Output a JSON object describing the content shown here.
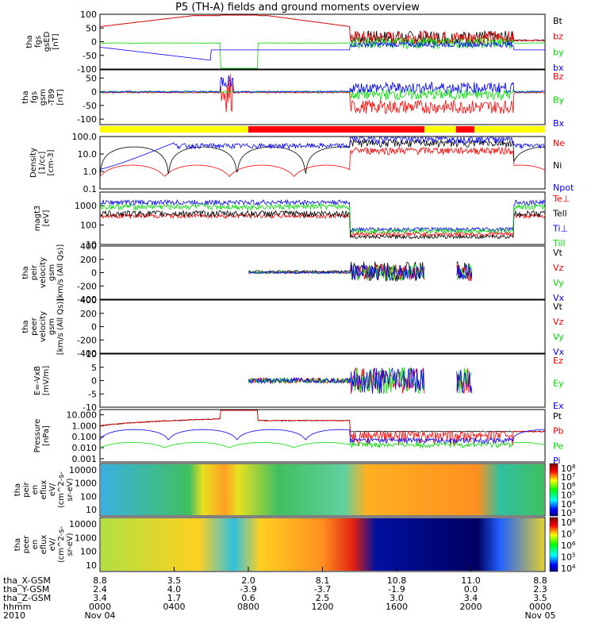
{
  "title": "P5 (TH-A) fields and ground moments overview",
  "colors": {
    "black": "#000000",
    "red": "#ff0000",
    "green": "#00dd00",
    "blue": "#0000ff",
    "yellow": "#ffff00"
  },
  "chart_data": [
    {
      "type": "line",
      "panel": "fgs-gsm",
      "ylabel": [
        "tha",
        "fgs",
        "gsED",
        "[nT]"
      ],
      "ylim": [
        -100,
        100
      ],
      "yticks": [
        "100",
        "50",
        "0",
        "-50",
        "-100"
      ],
      "yscale": "linear",
      "series": [
        {
          "name": "Bt",
          "color": "#000000"
        },
        {
          "name": "bz",
          "color": "#ff0000"
        },
        {
          "name": "by",
          "color": "#00dd00"
        },
        {
          "name": "bx",
          "color": "#0000ff"
        }
      ]
    },
    {
      "type": "line",
      "panel": "fgs-gsm-t89",
      "ylabel": [
        "tha",
        "fgs",
        "gsm",
        "-T89",
        "[nT]"
      ],
      "ylim": [
        -120,
        80
      ],
      "yticks": [
        "50",
        "0",
        "-50",
        "-100"
      ],
      "yscale": "linear",
      "series": [
        {
          "name": "Bz",
          "color": "#ff0000"
        },
        {
          "name": "By",
          "color": "#00dd00"
        },
        {
          "name": "Bx",
          "color": "#0000ff"
        }
      ]
    },
    {
      "type": "bar",
      "panel": "region-bar",
      "segments": [
        {
          "from": 0,
          "to": 8.0,
          "color": "#ffff00"
        },
        {
          "from": 8.0,
          "to": 17.5,
          "color": "#ff0000"
        },
        {
          "from": 17.5,
          "to": 19.2,
          "color": "#ffff00"
        },
        {
          "from": 19.2,
          "to": 20.2,
          "color": "#ff0000"
        },
        {
          "from": 20.2,
          "to": 24,
          "color": "#ffff00"
        }
      ]
    },
    {
      "type": "line",
      "panel": "density",
      "ylabel": [
        "Density",
        "[1/cc]",
        "[cm-3]"
      ],
      "ylim": [
        0.1,
        100
      ],
      "yticks": [
        "100.0",
        "10.0",
        "1.0",
        "0.1"
      ],
      "yscale": "log",
      "series": [
        {
          "name": "Ne",
          "color": "#ff0000"
        },
        {
          "name": "Ni",
          "color": "#000000"
        },
        {
          "name": "Npot",
          "color": "#0000ff"
        }
      ]
    },
    {
      "type": "line",
      "panel": "temperature",
      "ylabel": [
        "magt3",
        "[eV]"
      ],
      "ylim": [
        10,
        5000
      ],
      "yticks": [
        "1000",
        "100",
        "10"
      ],
      "yscale": "log",
      "series": [
        {
          "name": "Te⊥",
          "color": "#ff0000"
        },
        {
          "name": "Tell",
          "color": "#000000"
        },
        {
          "name": "Ti⊥",
          "color": "#0000ff"
        },
        {
          "name": "Till",
          "color": "#00dd00"
        }
      ]
    },
    {
      "type": "line",
      "panel": "peir-velocity",
      "ylabel": [
        "tha",
        "peir",
        "velocity",
        "gsm",
        "[km/s (All Qs)]"
      ],
      "ylim": [
        -400,
        400
      ],
      "yticks": [
        "400",
        "200",
        "0",
        "-200",
        "-400"
      ],
      "yscale": "linear",
      "series": [
        {
          "name": "Vt",
          "color": "#000000"
        },
        {
          "name": "Vz",
          "color": "#ff0000"
        },
        {
          "name": "Vy",
          "color": "#00dd00"
        },
        {
          "name": "Vx",
          "color": "#0000ff"
        }
      ]
    },
    {
      "type": "line",
      "panel": "peer-velocity",
      "ylabel": [
        "tha",
        "peer",
        "velocity",
        "gsm",
        "[km/s (All Qs)]"
      ],
      "ylim": [
        -400,
        400
      ],
      "yticks": [
        "400",
        "200",
        "0",
        "-200",
        "-400"
      ],
      "yscale": "linear",
      "series": [
        {
          "name": "Vt",
          "color": "#000000"
        },
        {
          "name": "Vz",
          "color": "#ff0000"
        },
        {
          "name": "Vy",
          "color": "#00dd00"
        },
        {
          "name": "Vx",
          "color": "#0000ff"
        }
      ]
    },
    {
      "type": "line",
      "panel": "efield",
      "ylabel": [
        "E=-VxB",
        "[mV/m]"
      ],
      "ylim": [
        -10,
        10
      ],
      "yticks": [
        "10",
        "5",
        "0",
        "-5",
        "-10"
      ],
      "yscale": "linear",
      "series": [
        {
          "name": "Ez",
          "color": "#ff0000"
        },
        {
          "name": "Ey",
          "color": "#00dd00"
        },
        {
          "name": "Ex",
          "color": "#0000ff"
        }
      ]
    },
    {
      "type": "line",
      "panel": "pressure",
      "ylabel": [
        "Pressure",
        "[nPa]"
      ],
      "ylim": [
        0.0005,
        30
      ],
      "yticks": [
        "10.000",
        "1.000",
        "0.100",
        "0.010",
        "0.001"
      ],
      "yscale": "log",
      "series": [
        {
          "name": "Pt",
          "color": "#000000"
        },
        {
          "name": "Pb",
          "color": "#ff0000"
        },
        {
          "name": "Pe",
          "color": "#00dd00"
        },
        {
          "name": "Pi",
          "color": "#0000ff"
        }
      ]
    },
    {
      "type": "heatmap",
      "panel": "peir-en-eflux",
      "ylabel": [
        "tha",
        "peir",
        "en",
        "eflux",
        "eV/",
        "(cm^2-s-",
        "sr-eV)"
      ],
      "yticks": [
        "10000",
        "1000",
        "100",
        "10"
      ],
      "colorbar": {
        "labels": [
          "10^8",
          "10^7",
          "10^6",
          "10^5",
          "10^4",
          "10^3"
        ]
      }
    },
    {
      "type": "heatmap",
      "panel": "peer-en-eflux",
      "ylabel": [
        "tha",
        "peer",
        "en",
        "eflux",
        "eV/",
        "(cm^2-s-",
        "sr-eV)"
      ],
      "yticks": [
        "10000",
        "1000",
        "100",
        "10"
      ],
      "colorbar": {
        "labels": [
          "10^8",
          "10^7",
          "10^6",
          "10^5",
          "10^4"
        ]
      }
    }
  ],
  "xaxis": {
    "row_labels": [
      "tha_X-GSM",
      "tha_Y-GSM",
      "tha_Z-GSM",
      "hhmm",
      "2010"
    ],
    "columns": [
      {
        "x": 0,
        "vals": [
          "8.8",
          "2.4",
          "3.4",
          "0000",
          "Nov 04"
        ]
      },
      {
        "x": 4,
        "vals": [
          "3.5",
          "4.0",
          "1.7",
          "0400",
          ""
        ]
      },
      {
        "x": 8,
        "vals": [
          "2.0",
          "-3.9",
          "0.6",
          "0800",
          ""
        ]
      },
      {
        "x": 12,
        "vals": [
          "8.1",
          "-3.7",
          "2.5",
          "1200",
          ""
        ]
      },
      {
        "x": 16,
        "vals": [
          "10.8",
          "-1.9",
          "3.0",
          "1600",
          ""
        ]
      },
      {
        "x": 20,
        "vals": [
          "11.0",
          "0.0",
          "3.4",
          "2000",
          ""
        ]
      },
      {
        "x": 24,
        "vals": [
          "8.8",
          "2.3",
          "3.5",
          "0000",
          "Nov 05"
        ]
      }
    ]
  }
}
